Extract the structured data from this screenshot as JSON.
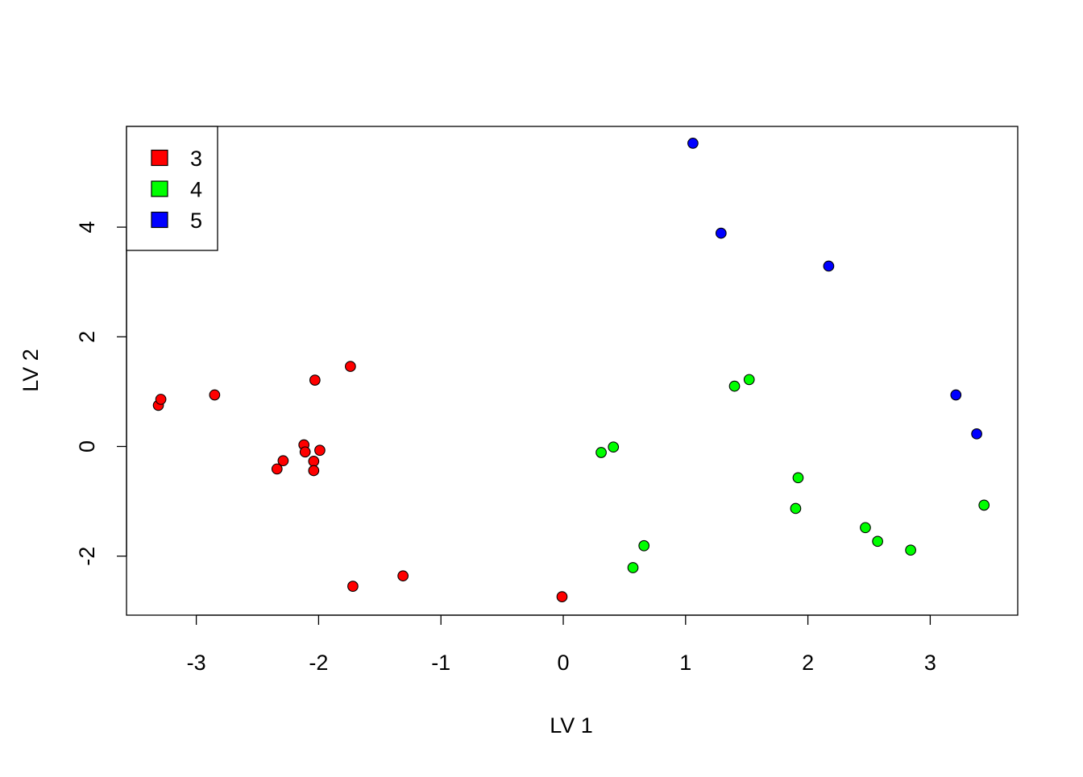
{
  "chart_data": {
    "type": "scatter",
    "title": "",
    "xlabel": "LV 1",
    "ylabel": "LV 2",
    "xlim": [
      -3.6,
      3.7
    ],
    "ylim": [
      -3.05,
      5.85
    ],
    "x_ticks": [
      -3,
      -2,
      -1,
      0,
      1,
      2,
      3
    ],
    "y_ticks": [
      -2,
      0,
      2,
      4
    ],
    "grid": false,
    "legend_position": "top-left",
    "legend": [
      {
        "label": "3",
        "color": "#ff0000"
      },
      {
        "label": "4",
        "color": "#00ff00"
      },
      {
        "label": "5",
        "color": "#0000ff"
      }
    ],
    "series": [
      {
        "name": "3",
        "color": "#ff0000",
        "points": [
          {
            "x": -3.31,
            "y": 0.75
          },
          {
            "x": -3.29,
            "y": 0.86
          },
          {
            "x": -2.85,
            "y": 0.94
          },
          {
            "x": -2.34,
            "y": -0.41
          },
          {
            "x": -2.29,
            "y": -0.26
          },
          {
            "x": -2.12,
            "y": 0.03
          },
          {
            "x": -2.11,
            "y": -0.1
          },
          {
            "x": -2.04,
            "y": -0.27
          },
          {
            "x": -2.04,
            "y": -0.44
          },
          {
            "x": -2.03,
            "y": 1.21
          },
          {
            "x": -1.99,
            "y": -0.07
          },
          {
            "x": -1.74,
            "y": 1.46
          },
          {
            "x": -1.72,
            "y": -2.55
          },
          {
            "x": -1.31,
            "y": -2.36
          },
          {
            "x": -0.01,
            "y": -2.74
          }
        ]
      },
      {
        "name": "4",
        "color": "#00ff00",
        "points": [
          {
            "x": 0.31,
            "y": -0.11
          },
          {
            "x": 0.41,
            "y": -0.01
          },
          {
            "x": 0.57,
            "y": -2.21
          },
          {
            "x": 0.66,
            "y": -1.81
          },
          {
            "x": 1.4,
            "y": 1.1
          },
          {
            "x": 1.52,
            "y": 1.22
          },
          {
            "x": 1.9,
            "y": -1.13
          },
          {
            "x": 1.92,
            "y": -0.57
          },
          {
            "x": 2.47,
            "y": -1.48
          },
          {
            "x": 2.57,
            "y": -1.73
          },
          {
            "x": 2.84,
            "y": -1.89
          },
          {
            "x": 3.44,
            "y": -1.07
          }
        ]
      },
      {
        "name": "5",
        "color": "#0000ff",
        "points": [
          {
            "x": 1.06,
            "y": 5.53
          },
          {
            "x": 1.29,
            "y": 3.89
          },
          {
            "x": 2.17,
            "y": 3.29
          },
          {
            "x": 3.21,
            "y": 0.94
          },
          {
            "x": 3.38,
            "y": 0.23
          }
        ]
      }
    ]
  }
}
